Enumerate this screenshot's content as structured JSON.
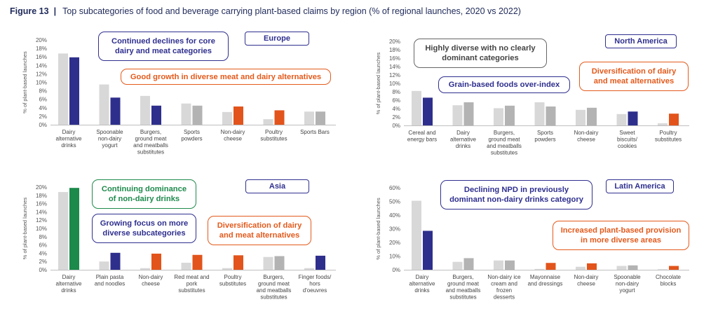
{
  "figure": {
    "label": "Figure 13",
    "separator": "|",
    "title": "Top subcategories of food and beverage carrying plant-based claims by region (% of regional launches, 2020 vs 2022)"
  },
  "colors": {
    "y2020": "#d8d8d8",
    "navy": "#2e2f8c",
    "orange": "#e2541b",
    "grey2022": "#b3b3b3",
    "green": "#1b8a4a"
  },
  "chart_data": [
    {
      "type": "bar",
      "region": "Europe",
      "ylabel": "% of plant-based launches",
      "ylim": [
        0,
        20
      ],
      "yticks": [
        "0%",
        "2%",
        "4%",
        "6%",
        "8%",
        "10%",
        "12%",
        "14%",
        "16%",
        "18%",
        "20%"
      ],
      "categories": [
        [
          "Dairy",
          "alternative",
          "drinks"
        ],
        [
          "Spoonable",
          "non-dairy",
          "yogurt"
        ],
        [
          "Burgers,",
          "ground meat",
          "and meatballs",
          "substitutes"
        ],
        [
          "Sports",
          "powders"
        ],
        [
          "Non-dairy",
          "cheese"
        ],
        [
          "Poultry",
          "substitutes"
        ],
        [
          "Sports Bars"
        ]
      ],
      "values_2020": [
        16.8,
        9.5,
        6.8,
        5.0,
        3.0,
        1.3,
        3.1
      ],
      "values_2022": [
        15.9,
        6.4,
        4.5,
        4.5,
        4.3,
        3.4,
        3.1
      ],
      "color_2022": [
        "navy",
        "navy",
        "navy",
        "grey2022",
        "orange",
        "orange",
        "grey2022"
      ],
      "callouts": [
        {
          "text": [
            "Continued declines for core",
            "dairy and meat categories"
          ],
          "style": "navy"
        },
        {
          "text": [
            "Good growth in diverse meat and dairy alternatives"
          ],
          "style": "orange"
        }
      ]
    },
    {
      "type": "bar",
      "region": "North America",
      "ylabel": "% of plant-based launches",
      "ylim": [
        0,
        20
      ],
      "yticks": [
        "0%",
        "2%",
        "4%",
        "6%",
        "8%",
        "10%",
        "12%",
        "14%",
        "16%",
        "18%",
        "20%"
      ],
      "categories": [
        [
          "Cereal and",
          "energy bars"
        ],
        [
          "Dairy",
          "alternative",
          "drinks"
        ],
        [
          "Burgers,",
          "ground meat",
          "and meatballs",
          "substitutes"
        ],
        [
          "Sports",
          "powders"
        ],
        [
          "Non-dairy",
          "cheese"
        ],
        [
          "Sweet",
          "biscuits/",
          "cookies"
        ],
        [
          "Poultry",
          "substitutes"
        ]
      ],
      "values_2020": [
        8.2,
        4.8,
        4.1,
        5.5,
        3.7,
        2.7,
        0.5
      ],
      "values_2022": [
        6.6,
        5.5,
        4.7,
        4.5,
        4.2,
        3.3,
        2.8
      ],
      "color_2022": [
        "navy",
        "grey2022",
        "grey2022",
        "grey2022",
        "grey2022",
        "navy",
        "orange"
      ],
      "callouts": [
        {
          "text": [
            "Highly diverse with no clearly",
            "dominant categories"
          ],
          "style": "grey"
        },
        {
          "text": [
            "Grain-based foods over-index"
          ],
          "style": "navy"
        },
        {
          "text": [
            "Diversification of dairy",
            "and meat alternatives"
          ],
          "style": "orange"
        }
      ]
    },
    {
      "type": "bar",
      "region": "Asia",
      "ylabel": "% of plant-based launches",
      "ylim": [
        0,
        20
      ],
      "yticks": [
        "0%",
        "2%",
        "4%",
        "6%",
        "8%",
        "10%",
        "12%",
        "14%",
        "16%",
        "18%",
        "20%"
      ],
      "categories": [
        [
          "Dairy",
          "alternative",
          "drinks"
        ],
        [
          "Plain pasta",
          "and noodles"
        ],
        [
          "Non-dairy",
          "cheese"
        ],
        [
          "Red meat and",
          "pork",
          "substitutes"
        ],
        [
          "Poultry",
          "substitutes"
        ],
        [
          "Burgers,",
          "ground meat",
          "and meatballs",
          "substitutes"
        ],
        [
          "Finger foods/",
          "hors",
          "d'oeuvres"
        ]
      ],
      "values_2020": [
        18.8,
        2.0,
        0.4,
        1.7,
        0.4,
        3.1,
        0.4
      ],
      "values_2022": [
        19.8,
        4.1,
        3.9,
        3.6,
        3.5,
        3.3,
        3.4
      ],
      "color_2022": [
        "green",
        "navy",
        "orange",
        "orange",
        "orange",
        "grey2022",
        "navy"
      ],
      "callouts": [
        {
          "text": [
            "Continuing dominance",
            "of non-dairy drinks"
          ],
          "style": "green"
        },
        {
          "text": [
            "Growing focus on more",
            "diverse subcategories"
          ],
          "style": "navy"
        },
        {
          "text": [
            "Diversification of dairy",
            "and meat alternatives"
          ],
          "style": "orange"
        }
      ]
    },
    {
      "type": "bar",
      "region": "Latin America",
      "ylabel": "% of plant-based launches",
      "ylim": [
        0,
        60
      ],
      "yticks": [
        "0%",
        "10%",
        "20%",
        "30%",
        "40%",
        "50%",
        "60%"
      ],
      "categories": [
        [
          "Dairy",
          "alternative",
          "drinks"
        ],
        [
          "Burgers,",
          "ground meat",
          "and meatballs",
          "substitutes"
        ],
        [
          "Non-dairy ice",
          "cream and",
          "frozen",
          "desserts"
        ],
        [
          "Mayonnaise",
          "and dressings"
        ],
        [
          "Non-dairy",
          "cheese"
        ],
        [
          "Spoonable",
          "non-dairy",
          "yogurt"
        ],
        [
          "Chocolate",
          "blocks"
        ]
      ],
      "values_2020": [
        50.5,
        5.8,
        6.8,
        0.6,
        2.2,
        2.8,
        0.4
      ],
      "values_2022": [
        28.5,
        8.5,
        6.8,
        5.0,
        4.7,
        3.2,
        2.8
      ],
      "color_2022": [
        "navy",
        "grey2022",
        "grey2022",
        "orange",
        "orange",
        "grey2022",
        "orange"
      ],
      "callouts": [
        {
          "text": [
            "Declining NPD in previously",
            "dominant non-dairy drinks category"
          ],
          "style": "navy"
        },
        {
          "text": [
            "Increased plant-based provision",
            "in more diverse areas"
          ],
          "style": "orange"
        }
      ]
    }
  ]
}
